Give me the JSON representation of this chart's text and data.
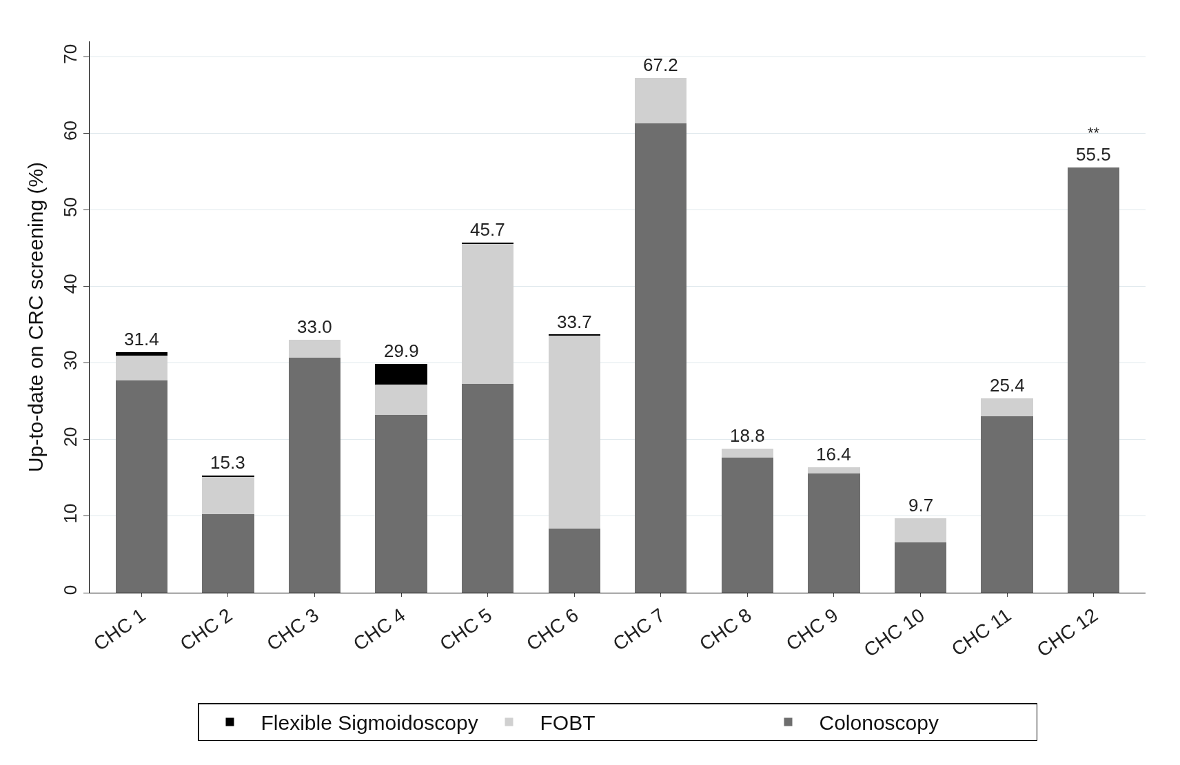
{
  "chart_data": {
    "type": "bar",
    "stacked": true,
    "ylabel": "Up-to-date on CRC screening (%)",
    "categories": [
      "CHC 1",
      "CHC 2",
      "CHC 3",
      "CHC 4",
      "CHC 5",
      "CHC 6",
      "CHC 7",
      "CHC 8",
      "CHC 9",
      "CHC 10",
      "CHC 11",
      "CHC 12"
    ],
    "series": [
      {
        "name": "Colonoscopy",
        "color": "#6e6e6e",
        "values": [
          27.7,
          10.3,
          30.7,
          23.2,
          27.3,
          8.4,
          61.3,
          17.6,
          15.6,
          6.6,
          23.0,
          55.5
        ]
      },
      {
        "name": "FOBT",
        "color": "#d0d0d0",
        "values": [
          3.3,
          4.9,
          2.3,
          4.0,
          18.3,
          25.2,
          5.9,
          1.2,
          0.8,
          3.1,
          2.4,
          0
        ]
      },
      {
        "name": "Flexible Sigmoidoscopy",
        "color": "#000000",
        "values": [
          0.4,
          0.1,
          0,
          2.7,
          0.1,
          0.1,
          0,
          0,
          0,
          0,
          0,
          0
        ]
      }
    ],
    "totals": [
      "31.4",
      "15.3",
      "33.0",
      "29.9",
      "45.7",
      "33.7",
      "67.2",
      "18.8",
      "16.4",
      "9.7",
      "25.4",
      "55.5"
    ],
    "annotations": [
      {
        "text": "**",
        "x": "CHC 12",
        "y": 55.5
      }
    ],
    "ylim": [
      0,
      72
    ],
    "yticks": [
      0,
      10,
      20,
      30,
      40,
      50,
      60,
      70
    ],
    "grid": "y",
    "legend": "bottom"
  }
}
